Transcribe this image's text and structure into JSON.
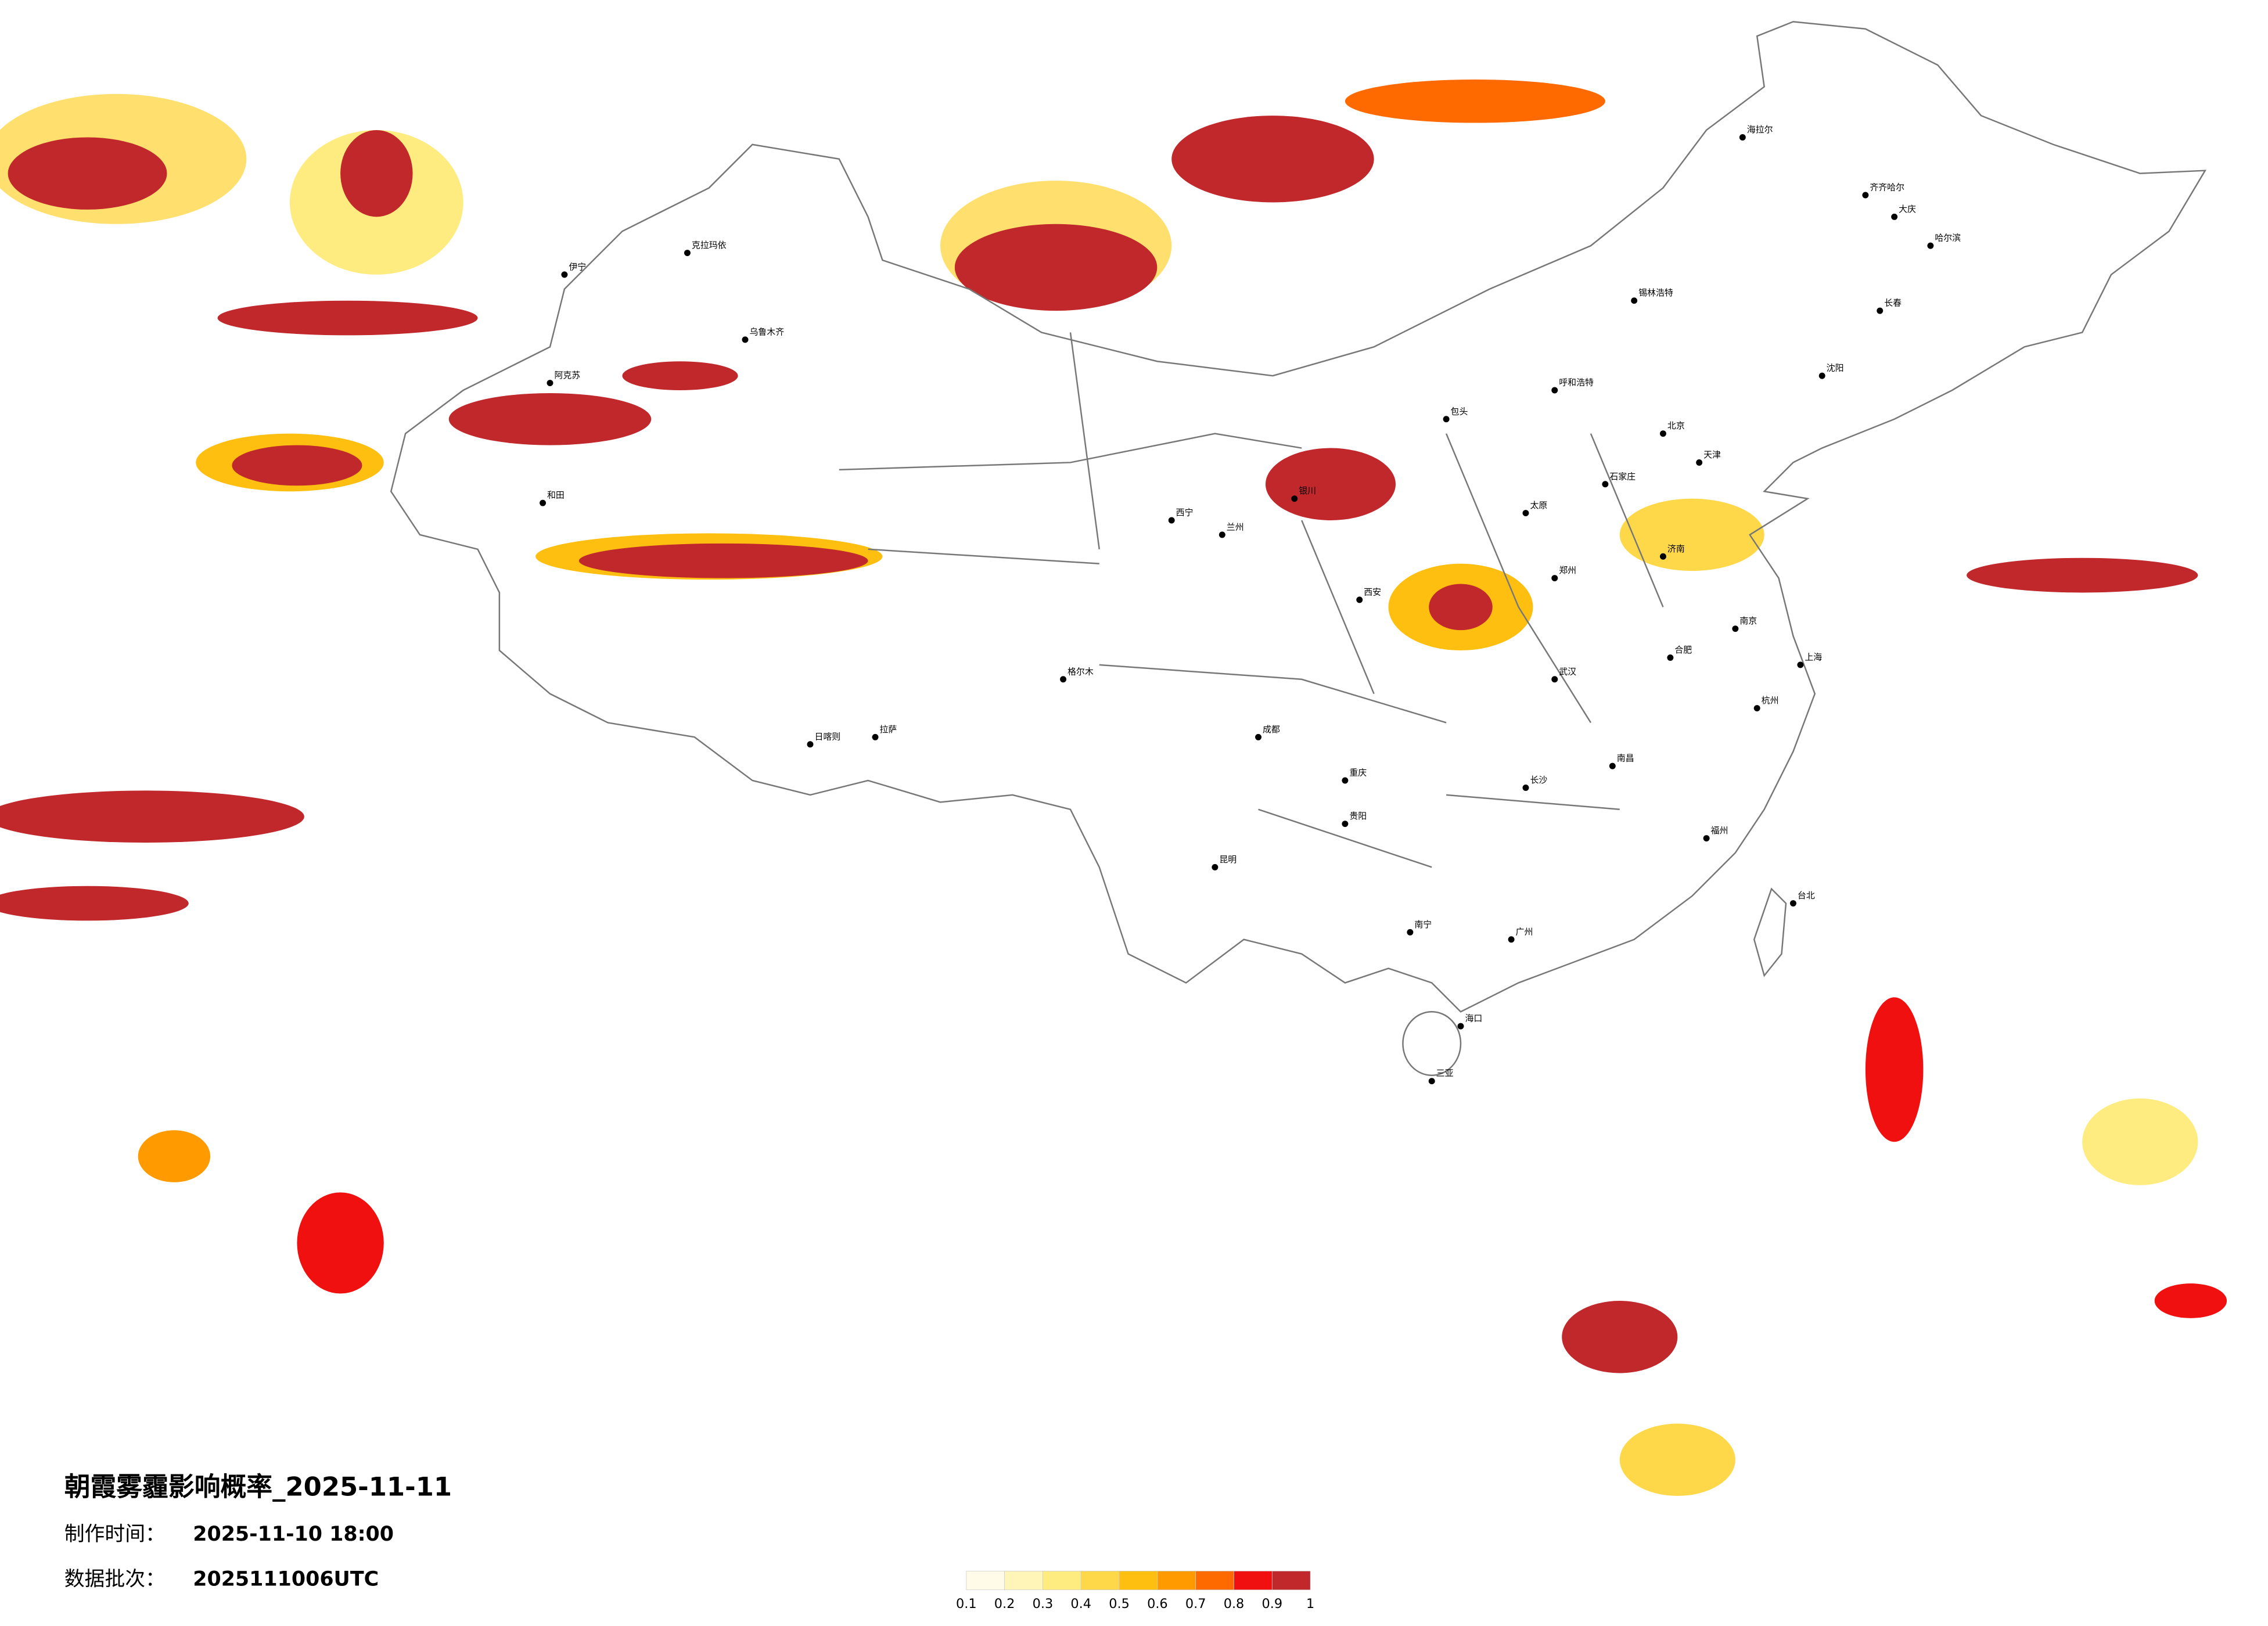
{
  "header": {
    "title": "朝霞雾霾影响概率_2025-11-11",
    "made_label": "制作时间：",
    "made_value": "2025-11-10 18:00",
    "batch_label": "数据批次：",
    "batch_value": "2025111006UTC"
  },
  "legend": {
    "colors": [
      "#fffbe8",
      "#fff5b8",
      "#ffec80",
      "#ffd84a",
      "#ffbf10",
      "#ff9a00",
      "#ff6a00",
      "#f01010",
      "#c0282c"
    ],
    "ticks": [
      0.1,
      0.2,
      0.3,
      0.4,
      0.5,
      0.6,
      0.7,
      0.8,
      0.9,
      1
    ]
  },
  "cities": [
    "北京",
    "天津",
    "石家庄",
    "太原",
    "呼和浩特",
    "沈阳",
    "长春",
    "哈尔滨",
    "济南",
    "郑州",
    "西安",
    "兰州",
    "西宁",
    "银川",
    "乌鲁木齐",
    "拉萨",
    "成都",
    "重庆",
    "贵阳",
    "昆明",
    "南宁",
    "广州",
    "长沙",
    "武汉",
    "南昌",
    "合肥",
    "南京",
    "上海",
    "杭州",
    "福州",
    "海口",
    "台北",
    "伊宁",
    "克拉玛依",
    "阿克苏",
    "和田",
    "日喀则",
    "格尔木",
    "海拉尔",
    "齐齐哈尔",
    "大庆",
    "锡林浩特",
    "包头",
    "三亚"
  ]
}
